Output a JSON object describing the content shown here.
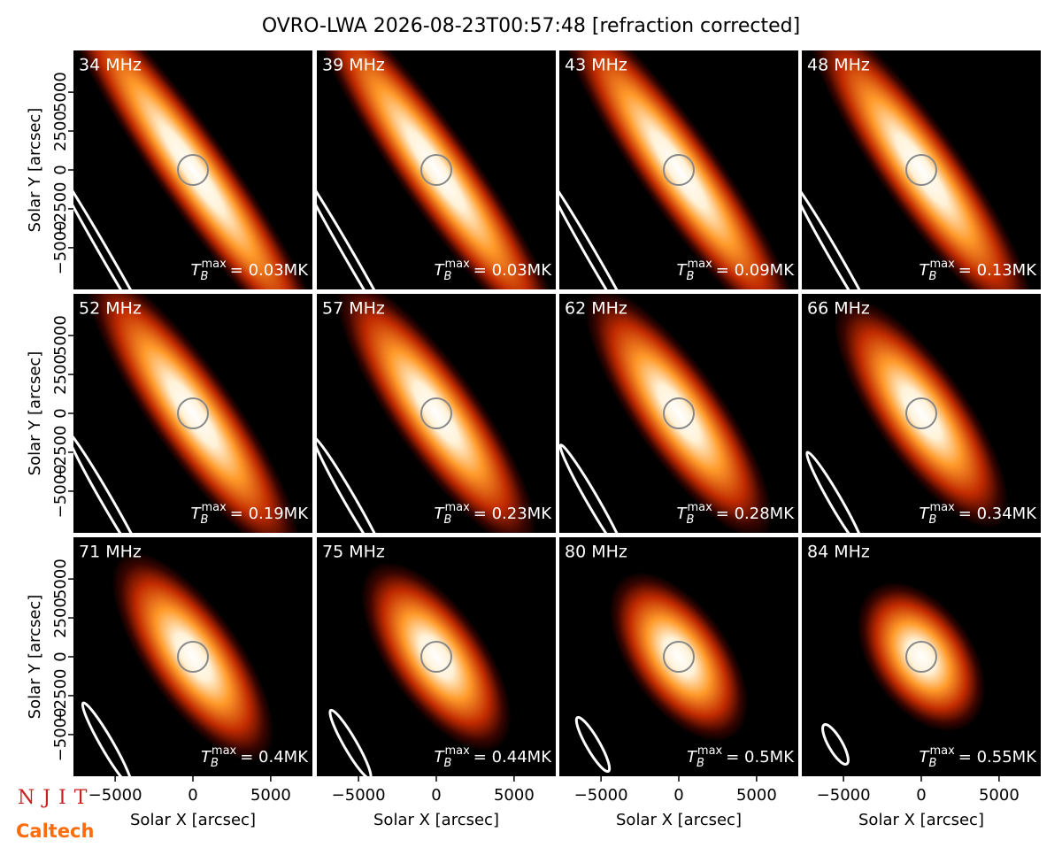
{
  "chart_data": {
    "type": "image-grid",
    "title": "OVRO-LWA 2026-08-23T00:57:48 [refraction corrected]",
    "x_label": "Solar X [arcsec]",
    "y_label": "Solar Y [arcsec]",
    "xlim": [
      -7680,
      7680
    ],
    "ylim": [
      -7680,
      7680
    ],
    "xticks": [
      {
        "value": -5000,
        "label": "−5000"
      },
      0,
      5000
    ],
    "yticks": [
      {
        "value": -5000,
        "label": "−5000"
      },
      {
        "value": -2500,
        "label": "−2500"
      },
      0,
      2500,
      5000
    ],
    "tb_symbol": "T",
    "tb_sub": "B",
    "tb_sup": "max",
    "panels": [
      {
        "label": "34 MHz",
        "tb": "= 0.03MK"
      },
      {
        "label": "39 MHz",
        "tb": "= 0.03MK"
      },
      {
        "label": "43 MHz",
        "tb": "= 0.09MK"
      },
      {
        "label": "48 MHz",
        "tb": "= 0.13MK"
      },
      {
        "label": "52 MHz",
        "tb": "= 0.19MK"
      },
      {
        "label": "57 MHz",
        "tb": "= 0.23MK"
      },
      {
        "label": "62 MHz",
        "tb": "= 0.28MK"
      },
      {
        "label": "66 MHz",
        "tb": "= 0.34MK"
      },
      {
        "label": "71 MHz",
        "tb": "= 0.4MK"
      },
      {
        "label": "75 MHz",
        "tb": "= 0.44MK"
      },
      {
        "label": "80 MHz",
        "tb": "= 0.5MK"
      },
      {
        "label": "84 MHz",
        "tb": "= 0.55MK"
      }
    ]
  },
  "logos": {
    "njit": "NJIT",
    "caltech": "Caltech"
  }
}
